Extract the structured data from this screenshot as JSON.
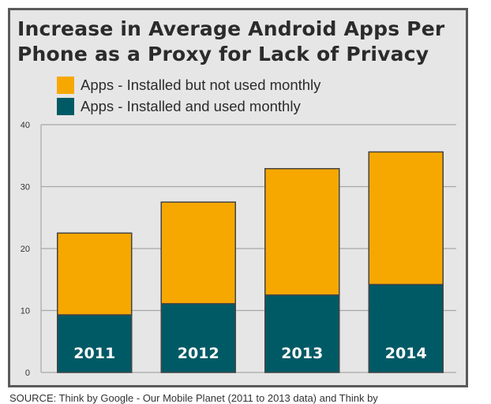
{
  "title_line1": "Increase in Average Android Apps Per",
  "title_line2": "Phone as a Proxy for Lack of Privacy",
  "legend": [
    {
      "label": "Apps - Installed but not used monthly",
      "color": "#f7a800"
    },
    {
      "label": "Apps - Installed and used monthly",
      "color": "#005a66"
    }
  ],
  "source_text": "SOURCE: Think by Google - Our Mobile Planet (2011 to 2013 data) and Think by",
  "chart_data": {
    "type": "bar",
    "stacked": true,
    "categories": [
      "2011",
      "2012",
      "2013",
      "2014"
    ],
    "series": [
      {
        "name": "Apps - Installed and used monthly",
        "values": [
          9.3,
          11.1,
          12.5,
          14.2
        ],
        "color": "#005a66"
      },
      {
        "name": "Apps - Installed but not used monthly",
        "values": [
          13.2,
          16.4,
          20.4,
          21.4
        ],
        "color": "#f7a800"
      }
    ],
    "ylim": [
      0,
      40
    ],
    "yticks": [
      0,
      10,
      20,
      30,
      40
    ],
    "grid": true,
    "legend_position": "top-left",
    "category_labels_inside_bars": true
  }
}
